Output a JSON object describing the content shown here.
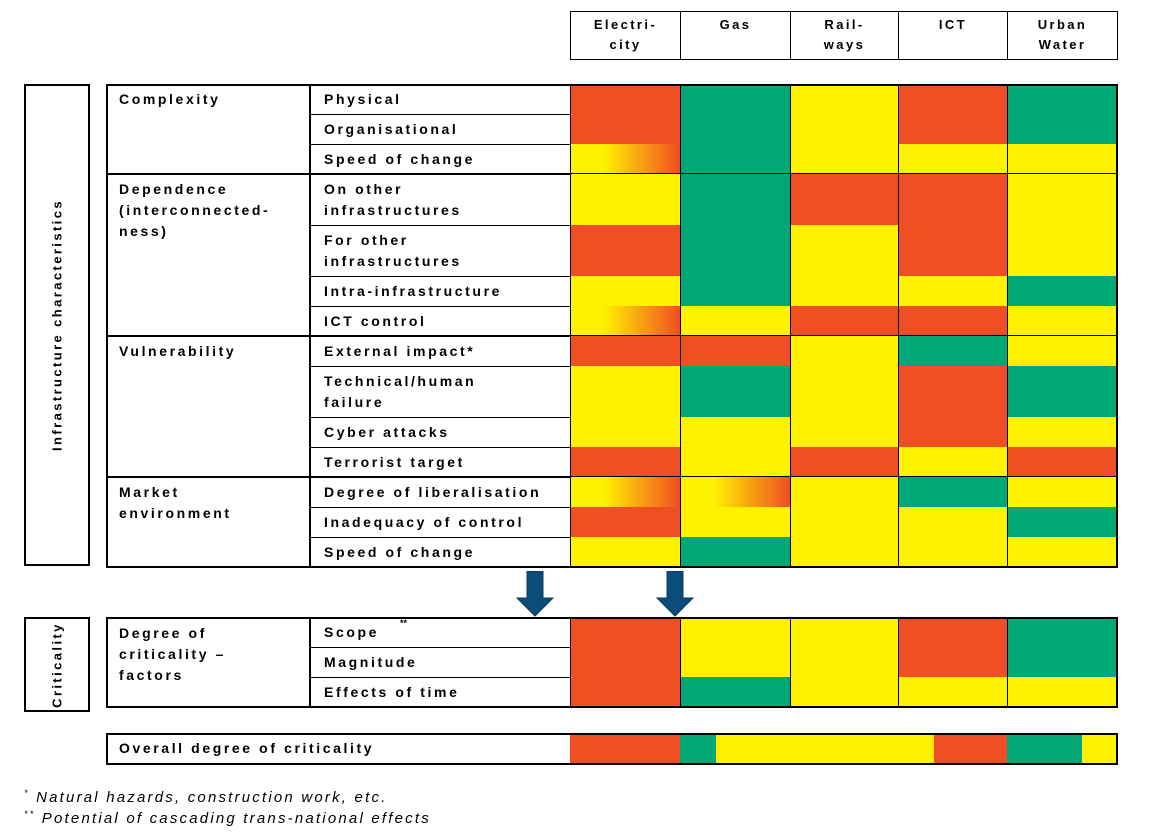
{
  "colors": {
    "red": "#F04E23",
    "green": "#00A875",
    "yellow": "#FFF200"
  },
  "columns": [
    "Electri-\ncity",
    "Gas",
    "Rail-\nways",
    "ICT",
    "Urban\nWater"
  ],
  "side_labels": {
    "infrastructure": "Infrastructure characteristics",
    "criticality": "Criticality"
  },
  "characteristics": {
    "groups": [
      {
        "label": "Complexity",
        "rows": [
          {
            "label": "Physical",
            "cells": [
              "R",
              "G",
              "Y",
              "R",
              "G"
            ]
          },
          {
            "label": "Organisational",
            "cells": [
              "R",
              "G",
              "Y",
              "R",
              "G"
            ]
          },
          {
            "label": "Speed of change",
            "cells": [
              "YR",
              "G",
              "Y",
              "Y",
              "Y"
            ]
          }
        ]
      },
      {
        "label": "Dependence\n(interconnected-\nness)",
        "rows": [
          {
            "label": "On other\ninfrastructures",
            "cells": [
              "Y",
              "G",
              "R",
              "R",
              "Y"
            ]
          },
          {
            "label": "For other\ninfrastructures",
            "cells": [
              "R",
              "G",
              "Y",
              "R",
              "Y"
            ]
          },
          {
            "label": "Intra-infrastructure",
            "cells": [
              "Y",
              "G",
              "Y",
              "Y",
              "G"
            ]
          },
          {
            "label": "ICT control",
            "cells": [
              "YR",
              "Y",
              "R",
              "R",
              "Y"
            ]
          }
        ]
      },
      {
        "label": "Vulnerability",
        "rows": [
          {
            "label": "External impact*",
            "cells": [
              "R",
              "R",
              "Y",
              "G",
              "Y"
            ]
          },
          {
            "label": "Technical/human\nfailure",
            "cells": [
              "Y",
              "G",
              "Y",
              "R",
              "G"
            ]
          },
          {
            "label": "Cyber attacks",
            "cells": [
              "Y",
              "Y",
              "Y",
              "R",
              "Y"
            ]
          },
          {
            "label": "Terrorist target",
            "cells": [
              "R",
              "Y",
              "R",
              "Y",
              "R"
            ]
          }
        ]
      },
      {
        "label": "Market\nenvironment",
        "rows": [
          {
            "label": "Degree of liberalisation",
            "cells": [
              "YR",
              "YR",
              "Y",
              "G",
              "Y"
            ]
          },
          {
            "label": "Inadequacy of control",
            "cells": [
              "R",
              "Y",
              "Y",
              "Y",
              "G"
            ]
          },
          {
            "label": "Speed of change",
            "cells": [
              "Y",
              "G",
              "Y",
              "Y",
              "Y"
            ]
          }
        ]
      }
    ]
  },
  "criticality": {
    "group_label": "Degree of\ncriticality –\nfactors",
    "rows": [
      {
        "label": "Scope",
        "label_sup": "**",
        "cells": [
          "R",
          "Y",
          "Y",
          "R",
          "G"
        ]
      },
      {
        "label": "Magnitude",
        "cells": [
          "R",
          "Y",
          "Y",
          "R",
          "G"
        ]
      },
      {
        "label": "Effects of time",
        "cells": [
          "R",
          "G",
          "Y",
          "Y",
          "Y"
        ]
      }
    ]
  },
  "overall": {
    "label": "Overall degree of criticality",
    "cells": [
      [
        [
          "R",
          1
        ]
      ],
      [
        [
          "G",
          0.33
        ],
        [
          "Y",
          0.67
        ]
      ],
      [
        [
          "Y",
          1
        ]
      ],
      [
        [
          "Y",
          0.33
        ],
        [
          "R",
          0.67
        ]
      ],
      [
        [
          "G",
          0.68
        ],
        [
          "Y",
          0.32
        ]
      ]
    ]
  },
  "footnotes": [
    {
      "mark": "*",
      "text": "Natural hazards, construction work, etc."
    },
    {
      "mark": "**",
      "text": "Potential of cascading trans-national effects"
    }
  ]
}
